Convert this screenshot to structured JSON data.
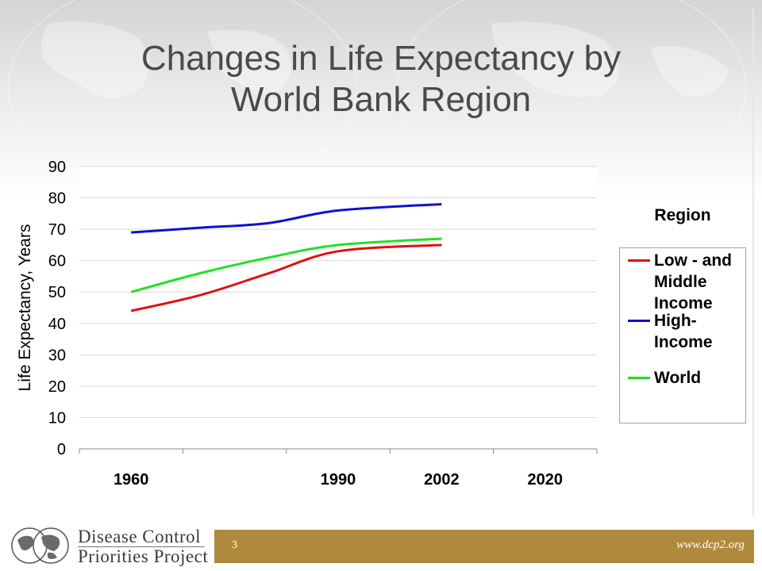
{
  "title": {
    "line1": "Changes in Life Expectancy by",
    "line2": "World Bank Region"
  },
  "chart_data": {
    "type": "line",
    "title": "Changes in Life Expectancy by World Bank Region",
    "ylabel": "Life Expectancy, Years",
    "xlabel": "",
    "ylim": [
      0,
      90
    ],
    "yticks": [
      0,
      10,
      20,
      30,
      40,
      50,
      60,
      70,
      80,
      90
    ],
    "categories": [
      "1960",
      "",
      "",
      "1990",
      "2002",
      "2020"
    ],
    "x_tick_labels": [
      "1960",
      "1990",
      "2002",
      "2020"
    ],
    "grid": "horizontal",
    "legend": {
      "title": "Region",
      "placement": "right"
    },
    "series": [
      {
        "name": "Low - and Middle Income",
        "color": "#e01010",
        "points": [
          [
            1960,
            44
          ],
          [
            1970,
            49
          ],
          [
            1980,
            56
          ],
          [
            1990,
            63
          ],
          [
            2002,
            65
          ]
        ]
      },
      {
        "name": "High- Income",
        "color": "#1010d0",
        "points": [
          [
            1960,
            69
          ],
          [
            1970,
            70.5
          ],
          [
            1980,
            72
          ],
          [
            1990,
            76
          ],
          [
            2002,
            78
          ]
        ]
      },
      {
        "name": "World",
        "color": "#22e022",
        "points": [
          [
            1960,
            50
          ],
          [
            1970,
            56
          ],
          [
            1980,
            61
          ],
          [
            1990,
            65
          ],
          [
            2002,
            67
          ]
        ]
      }
    ]
  },
  "legend": {
    "title": "Region",
    "items": [
      {
        "label": "Low - and Middle Income",
        "color": "#e01010"
      },
      {
        "label": "High- Income",
        "color": "#1010d0"
      },
      {
        "label": "World",
        "color": "#22e022"
      }
    ]
  },
  "footer": {
    "page_number": "3",
    "url": "www.dcp2.org",
    "logo_line1": "Disease Control",
    "logo_line2": "Priorities Project",
    "bar_color": "#b08a3c"
  }
}
